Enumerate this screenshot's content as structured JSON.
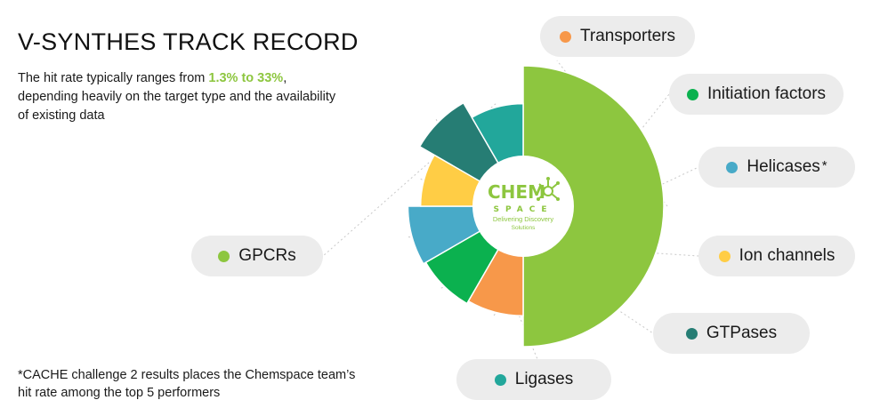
{
  "header": {
    "title": "V-SYNTHES TRACK RECORD",
    "desc_before": "The hit rate typically ranges from ",
    "desc_highlight": "1.3% to 33%",
    "desc_after": ", depending heavily on the target type and the availability of existing data"
  },
  "footnote": "*CACHE challenge 2 results places the Chemspace team’s hit rate among the top 5 performers",
  "logo": {
    "word1": "CHEM",
    "word2": "SPACE",
    "tagline1": "Delivering Discovery",
    "tagline2": "Solutions"
  },
  "colors": {
    "gpcrs": "#8dc63f",
    "transporters": "#f7984a",
    "initiation_factors": "#0bb14f",
    "helicases": "#48aac8",
    "ion_channels": "#ffcd45",
    "gtpases": "#267d74",
    "ligases": "#22a79b",
    "pill_bg": "#ececec",
    "highlight": "#8dc63f"
  },
  "chart_data": {
    "type": "pie",
    "note": "Polar-area style chart; slice radius varies by category",
    "slices": [
      {
        "label": "GPCRs",
        "color": "#8dc63f",
        "angle_deg": 180,
        "relative_radius": 1.0
      },
      {
        "label": "Transporters",
        "color": "#f7984a",
        "angle_deg": 30,
        "relative_radius": 0.78
      },
      {
        "label": "Initiation factors",
        "color": "#0bb14f",
        "angle_deg": 30,
        "relative_radius": 0.8
      },
      {
        "label": "Helicases",
        "color": "#48aac8",
        "angle_deg": 30,
        "relative_radius": 0.82
      },
      {
        "label": "Ion channels",
        "color": "#ffcd45",
        "angle_deg": 30,
        "relative_radius": 0.73
      },
      {
        "label": "GTPases",
        "color": "#267d74",
        "angle_deg": 30,
        "relative_radius": 0.85
      },
      {
        "label": "Ligases",
        "color": "#22a79b",
        "angle_deg": 30,
        "relative_radius": 0.73
      }
    ],
    "legend": [
      {
        "label": "Transporters",
        "color": "#f7984a",
        "mark": ""
      },
      {
        "label": "Initiation factors",
        "color": "#0bb14f",
        "mark": ""
      },
      {
        "label": "Helicases",
        "color": "#48aac8",
        "mark": "*"
      },
      {
        "label": "Ion channels",
        "color": "#ffcd45",
        "mark": ""
      },
      {
        "label": "GTPases",
        "color": "#267d74",
        "mark": ""
      },
      {
        "label": "Ligases",
        "color": "#22a79b",
        "mark": ""
      },
      {
        "label": "GPCRs",
        "color": "#8dc63f",
        "mark": ""
      }
    ]
  }
}
